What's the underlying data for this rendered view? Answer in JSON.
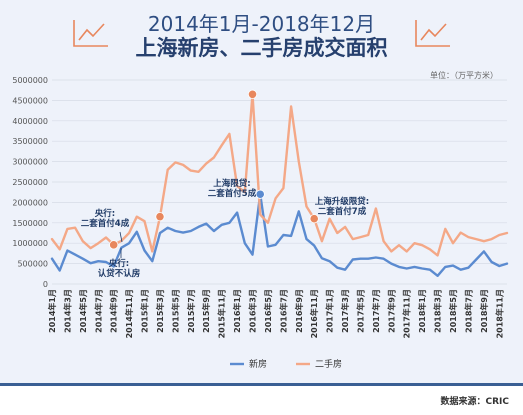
{
  "header": {
    "title_line1": "2014年1月-2018年12月",
    "title_line2": "上海新房、二手房成交面积",
    "unit": "单位：（万平方米）",
    "source": "数据来源：CRIC"
  },
  "colors": {
    "new": "#5b8bd0",
    "second": "#f4a887",
    "grid": "#d6dbe6",
    "accent": "#e8875d"
  },
  "chart_data": {
    "type": "line",
    "title": "上海新房、二手房成交面积",
    "ylabel": "单位：（万平方米）",
    "ylim": [
      0,
      5000000
    ],
    "yticks": [
      "0",
      "500000",
      "1000000",
      "1500000",
      "2000000",
      "2500000",
      "3000000",
      "3500000",
      "4000000",
      "4500000",
      "5000000"
    ],
    "xticks": [
      "2014年1月",
      "2014年3月",
      "2014年5月",
      "2014年7月",
      "2014年9月",
      "2014年11月",
      "2015年1月",
      "2015年3月",
      "2015年5月",
      "2015年7月",
      "2015年9月",
      "2015年11月",
      "2016年1月",
      "2016年3月",
      "2016年5月",
      "2016年7月",
      "2016年9月",
      "2016年11月",
      "2017年1月",
      "2017年3月",
      "2017年5月",
      "2017年7月",
      "2017年9月",
      "2017年11月",
      "2018年1月",
      "2018年3月",
      "2018年5月",
      "2018年7月",
      "2018年9月",
      "2018年11月"
    ],
    "series": [
      {
        "name": "新房",
        "values": [
          620000,
          330000,
          820000,
          720000,
          620000,
          510000,
          560000,
          540000,
          430000,
          890000,
          1000000,
          1280000,
          820000,
          560000,
          1250000,
          1380000,
          1300000,
          1260000,
          1300000,
          1400000,
          1480000,
          1300000,
          1450000,
          1500000,
          1750000,
          1000000,
          720000,
          2200000,
          920000,
          960000,
          1200000,
          1180000,
          1780000,
          1100000,
          940000,
          630000,
          560000,
          400000,
          350000,
          600000,
          620000,
          620000,
          650000,
          620000,
          500000,
          420000,
          380000,
          420000,
          380000,
          350000,
          200000,
          420000,
          450000,
          350000,
          400000,
          600000,
          800000,
          540000,
          440000,
          500000
        ]
      },
      {
        "name": "二手房",
        "values": [
          1100000,
          850000,
          1350000,
          1380000,
          1050000,
          880000,
          1000000,
          1140000,
          960000,
          1060000,
          1250000,
          1650000,
          1540000,
          800000,
          1650000,
          2800000,
          2980000,
          2920000,
          2780000,
          2750000,
          2950000,
          3100000,
          3400000,
          3680000,
          2400000,
          2250000,
          4650000,
          1700000,
          1500000,
          2100000,
          2350000,
          4350000,
          3000000,
          1900000,
          1600000,
          1050000,
          1600000,
          1250000,
          1400000,
          1100000,
          1150000,
          1200000,
          1850000,
          1050000,
          800000,
          950000,
          800000,
          1000000,
          950000,
          850000,
          700000,
          1350000,
          1000000,
          1260000,
          1150000,
          1100000,
          1050000,
          1100000,
          1200000,
          1250000
        ]
      }
    ],
    "markers": [
      {
        "series": "二手房",
        "index": 8,
        "value": 960000
      },
      {
        "series": "二手房",
        "index": 14,
        "value": 1650000
      },
      {
        "series": "二手房",
        "index": 26,
        "value": 4650000
      },
      {
        "series": "新房",
        "index": 27,
        "value": 2200000
      },
      {
        "series": "二手房",
        "index": 34,
        "value": 1600000
      }
    ],
    "annotations": [
      {
        "lines": [
          "央行:",
          "二套首付4成"
        ]
      },
      {
        "lines": [
          "央行:",
          "认贷不认房"
        ]
      },
      {
        "lines": [
          "上海限贷:",
          "二套首付5成"
        ]
      },
      {
        "lines": [
          "上海升级限贷:",
          "二套首付7成"
        ]
      }
    ]
  }
}
